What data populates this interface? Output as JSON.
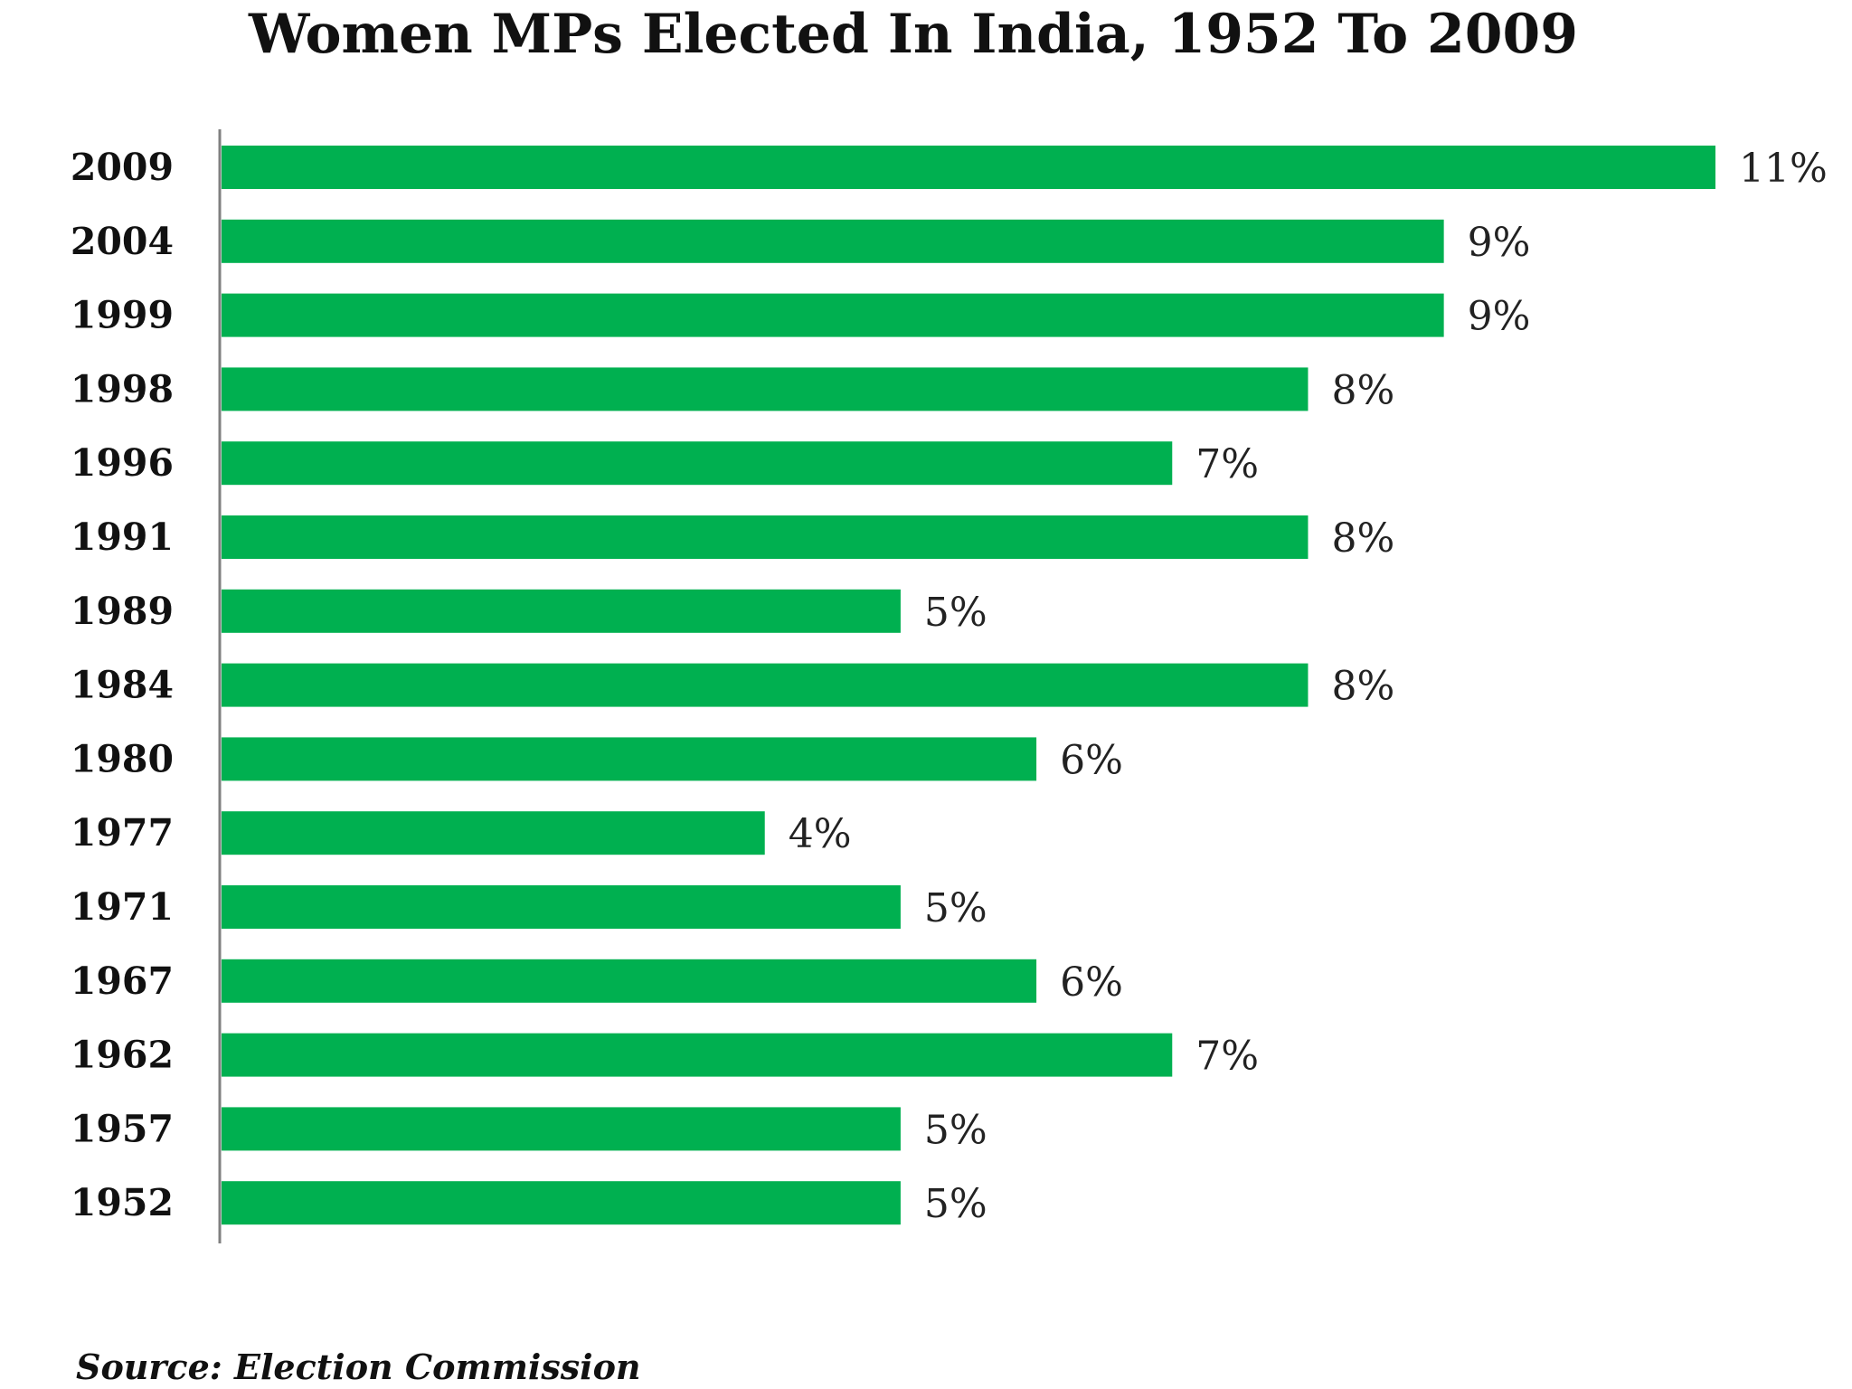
{
  "chart_data": {
    "type": "bar",
    "orientation": "horizontal",
    "title": "Women MPs Elected In India, 1952 To 2009",
    "categories": [
      "2009",
      "2004",
      "1999",
      "1998",
      "1996",
      "1991",
      "1989",
      "1984",
      "1980",
      "1977",
      "1971",
      "1967",
      "1962",
      "1957",
      "1952"
    ],
    "values": [
      11,
      9,
      9,
      8,
      7,
      8,
      5,
      8,
      6,
      4,
      5,
      6,
      7,
      5,
      5
    ],
    "value_labels": [
      "11%",
      "9%",
      "9%",
      "8%",
      "7%",
      "8%",
      "5%",
      "8%",
      "6%",
      "4%",
      "5%",
      "6%",
      "7%",
      "5%",
      "5%"
    ],
    "unit": "%",
    "xlim": [
      0,
      11
    ],
    "bar_color": "#00b050",
    "axis_color": "#808080",
    "grid": false,
    "legend": "none",
    "source": "Source: Election Commission"
  }
}
